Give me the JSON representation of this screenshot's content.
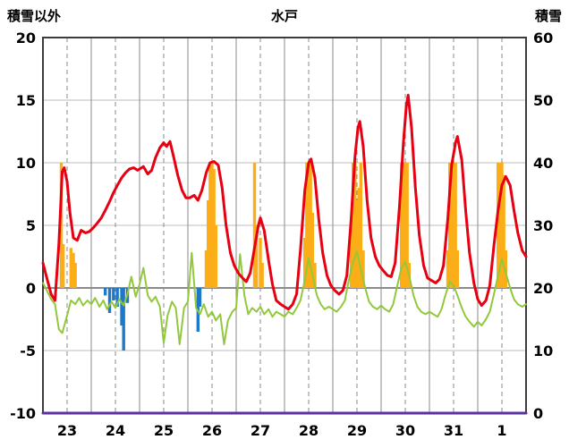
{
  "chart_data": {
    "type": "line",
    "title": "水戸",
    "left_axis": {
      "label": "積雪以外",
      "min": -10,
      "max": 20,
      "ticks": [
        20,
        15,
        10,
        5,
        0,
        -5,
        -10
      ]
    },
    "right_axis": {
      "label": "積雪",
      "min": 0,
      "max": 60,
      "ticks": [
        60,
        50,
        40,
        30,
        20,
        10,
        0
      ]
    },
    "x_axis": {
      "tick_labels": [
        "23",
        "24",
        "25",
        "26",
        "27",
        "28",
        "29",
        "30",
        "31",
        "1"
      ]
    },
    "grid": {
      "h_line_color": "#bdbdbd",
      "zero_line_color": "#8a8a8a",
      "v_line_color": "#8a8a8a",
      "frame_color": "#3c3c3c"
    },
    "series": [
      {
        "name": "orange-bars",
        "type": "bar",
        "axis": "left",
        "color": "#fbae17",
        "bar_width": 3.4,
        "points": [
          [
            0.38,
            10
          ],
          [
            0.42,
            3.5
          ],
          [
            0.58,
            3.2
          ],
          [
            0.63,
            2.8
          ],
          [
            0.67,
            2
          ],
          [
            3.38,
            3
          ],
          [
            3.42,
            7
          ],
          [
            3.46,
            10
          ],
          [
            3.5,
            10
          ],
          [
            3.54,
            9.5
          ],
          [
            3.58,
            5
          ],
          [
            4.38,
            10
          ],
          [
            4.42,
            5
          ],
          [
            4.5,
            4
          ],
          [
            4.54,
            2
          ],
          [
            5.42,
            4
          ],
          [
            5.46,
            10
          ],
          [
            5.5,
            10
          ],
          [
            5.54,
            10
          ],
          [
            5.58,
            6
          ],
          [
            5.63,
            2
          ],
          [
            6.38,
            5
          ],
          [
            6.42,
            10
          ],
          [
            6.46,
            10
          ],
          [
            6.5,
            7
          ],
          [
            6.54,
            8
          ],
          [
            6.58,
            10
          ],
          [
            6.63,
            3
          ],
          [
            7.42,
            10
          ],
          [
            7.46,
            10
          ],
          [
            7.5,
            10
          ],
          [
            7.54,
            10
          ],
          [
            7.58,
            2
          ],
          [
            8.38,
            3
          ],
          [
            8.42,
            10
          ],
          [
            8.46,
            10
          ],
          [
            8.5,
            10
          ],
          [
            8.54,
            10
          ],
          [
            8.58,
            3
          ],
          [
            9.42,
            10
          ],
          [
            9.46,
            10
          ],
          [
            9.5,
            10
          ],
          [
            9.54,
            9
          ],
          [
            9.58,
            3
          ]
        ]
      },
      {
        "name": "blue-bars",
        "type": "bar",
        "axis": "left",
        "color": "#1e7ac8",
        "bar_width": 3.4,
        "points": [
          [
            1.29,
            -0.6
          ],
          [
            1.38,
            -2
          ],
          [
            1.46,
            -1
          ],
          [
            1.54,
            -1.5
          ],
          [
            1.63,
            -3
          ],
          [
            1.67,
            -5
          ],
          [
            1.75,
            -1.2
          ],
          [
            3.21,
            -3.5
          ],
          [
            3.25,
            -1.5
          ]
        ]
      },
      {
        "name": "green-line",
        "type": "line",
        "axis": "left",
        "color": "#92c83c",
        "width": 2,
        "points": [
          [
            0,
            0.4
          ],
          [
            0.08,
            -0.2
          ],
          [
            0.17,
            -0.9
          ],
          [
            0.25,
            -1.3
          ],
          [
            0.33,
            -3.3
          ],
          [
            0.4,
            -3.6
          ],
          [
            0.5,
            -2.2
          ],
          [
            0.58,
            -1
          ],
          [
            0.67,
            -1.3
          ],
          [
            0.75,
            -0.8
          ],
          [
            0.83,
            -1.4
          ],
          [
            0.92,
            -1
          ],
          [
            1,
            -1.3
          ],
          [
            1.08,
            -0.8
          ],
          [
            1.17,
            -1.5
          ],
          [
            1.25,
            -1
          ],
          [
            1.33,
            -1.7
          ],
          [
            1.42,
            -1.1
          ],
          [
            1.5,
            -1.6
          ],
          [
            1.58,
            -0.9
          ],
          [
            1.67,
            -1.4
          ],
          [
            1.75,
            -0.5
          ],
          [
            1.83,
            0.9
          ],
          [
            1.92,
            -0.7
          ],
          [
            2,
            0.3
          ],
          [
            2.08,
            1.6
          ],
          [
            2.17,
            -0.6
          ],
          [
            2.25,
            -1.1
          ],
          [
            2.33,
            -0.7
          ],
          [
            2.42,
            -1.5
          ],
          [
            2.5,
            -4.4
          ],
          [
            2.58,
            -2.2
          ],
          [
            2.67,
            -1.1
          ],
          [
            2.75,
            -1.6
          ],
          [
            2.83,
            -4.5
          ],
          [
            2.92,
            -1.6
          ],
          [
            3,
            -1.1
          ],
          [
            3.08,
            2.8
          ],
          [
            3.17,
            -1.6
          ],
          [
            3.25,
            -2.1
          ],
          [
            3.33,
            -1.3
          ],
          [
            3.42,
            -2.3
          ],
          [
            3.5,
            -1.9
          ],
          [
            3.58,
            -2.6
          ],
          [
            3.67,
            -2.1
          ],
          [
            3.75,
            -4.5
          ],
          [
            3.83,
            -2.6
          ],
          [
            3.92,
            -1.9
          ],
          [
            4,
            -1.6
          ],
          [
            4.08,
            2.7
          ],
          [
            4.17,
            -0.6
          ],
          [
            4.25,
            -2.1
          ],
          [
            4.33,
            -1.6
          ],
          [
            4.42,
            -1.9
          ],
          [
            4.5,
            -1.5
          ],
          [
            4.58,
            -2.1
          ],
          [
            4.67,
            -1.7
          ],
          [
            4.75,
            -2.3
          ],
          [
            4.83,
            -1.9
          ],
          [
            4.92,
            -2.1
          ],
          [
            5,
            -2.3
          ],
          [
            5.08,
            -1.9
          ],
          [
            5.17,
            -2.1
          ],
          [
            5.25,
            -1.6
          ],
          [
            5.33,
            -1
          ],
          [
            5.42,
            0.6
          ],
          [
            5.5,
            2.4
          ],
          [
            5.58,
            1
          ],
          [
            5.67,
            -0.6
          ],
          [
            5.75,
            -1.3
          ],
          [
            5.83,
            -1.7
          ],
          [
            5.92,
            -1.5
          ],
          [
            6,
            -1.7
          ],
          [
            6.08,
            -1.9
          ],
          [
            6.17,
            -1.5
          ],
          [
            6.25,
            -1
          ],
          [
            6.33,
            0.6
          ],
          [
            6.42,
            2.1
          ],
          [
            6.5,
            2.9
          ],
          [
            6.58,
            1.5
          ],
          [
            6.67,
            0
          ],
          [
            6.75,
            -1.1
          ],
          [
            6.83,
            -1.5
          ],
          [
            6.92,
            -1.7
          ],
          [
            7,
            -1.4
          ],
          [
            7.08,
            -1.7
          ],
          [
            7.17,
            -1.9
          ],
          [
            7.25,
            -1.3
          ],
          [
            7.33,
            0.1
          ],
          [
            7.42,
            1.6
          ],
          [
            7.5,
            2.1
          ],
          [
            7.58,
            1
          ],
          [
            7.67,
            -0.6
          ],
          [
            7.75,
            -1.5
          ],
          [
            7.83,
            -1.9
          ],
          [
            7.92,
            -2.1
          ],
          [
            8,
            -1.9
          ],
          [
            8.08,
            -2.1
          ],
          [
            8.17,
            -2.3
          ],
          [
            8.25,
            -1.7
          ],
          [
            8.33,
            -0.6
          ],
          [
            8.42,
            0.5
          ],
          [
            8.5,
            0.2
          ],
          [
            8.58,
            -0.6
          ],
          [
            8.67,
            -1.6
          ],
          [
            8.75,
            -2.3
          ],
          [
            8.83,
            -2.7
          ],
          [
            8.92,
            -3.1
          ],
          [
            9,
            -2.7
          ],
          [
            9.08,
            -3
          ],
          [
            9.17,
            -2.5
          ],
          [
            9.25,
            -1.9
          ],
          [
            9.33,
            -0.6
          ],
          [
            9.42,
            1
          ],
          [
            9.5,
            2.3
          ],
          [
            9.58,
            1.2
          ],
          [
            9.67,
            0
          ],
          [
            9.75,
            -0.9
          ],
          [
            9.83,
            -1.3
          ],
          [
            9.92,
            -1.5
          ],
          [
            10,
            -1.3
          ]
        ]
      },
      {
        "name": "red-line",
        "type": "line",
        "axis": "left",
        "color": "#e60012",
        "width": 3,
        "points": [
          [
            0,
            2
          ],
          [
            0.08,
            0.8
          ],
          [
            0.17,
            -0.5
          ],
          [
            0.25,
            -1
          ],
          [
            0.33,
            3.5
          ],
          [
            0.4,
            9.3
          ],
          [
            0.44,
            9.6
          ],
          [
            0.5,
            8.5
          ],
          [
            0.56,
            6
          ],
          [
            0.63,
            4
          ],
          [
            0.71,
            3.8
          ],
          [
            0.79,
            4.6
          ],
          [
            0.88,
            4.4
          ],
          [
            0.96,
            4.5
          ],
          [
            1.04,
            4.8
          ],
          [
            1.13,
            5.2
          ],
          [
            1.21,
            5.6
          ],
          [
            1.29,
            6.2
          ],
          [
            1.38,
            6.9
          ],
          [
            1.46,
            7.6
          ],
          [
            1.54,
            8.2
          ],
          [
            1.63,
            8.8
          ],
          [
            1.71,
            9.2
          ],
          [
            1.79,
            9.5
          ],
          [
            1.88,
            9.6
          ],
          [
            1.96,
            9.4
          ],
          [
            2.04,
            9.6
          ],
          [
            2.08,
            9.7
          ],
          [
            2.17,
            9.1
          ],
          [
            2.25,
            9.4
          ],
          [
            2.33,
            10.4
          ],
          [
            2.42,
            11.2
          ],
          [
            2.5,
            11.6
          ],
          [
            2.56,
            11.3
          ],
          [
            2.63,
            11.7
          ],
          [
            2.71,
            10.4
          ],
          [
            2.79,
            9
          ],
          [
            2.88,
            7.8
          ],
          [
            2.96,
            7.2
          ],
          [
            3.04,
            7.2
          ],
          [
            3.13,
            7.4
          ],
          [
            3.21,
            7
          ],
          [
            3.29,
            7.8
          ],
          [
            3.38,
            9.2
          ],
          [
            3.46,
            10
          ],
          [
            3.54,
            10.1
          ],
          [
            3.63,
            9.8
          ],
          [
            3.71,
            8
          ],
          [
            3.79,
            5
          ],
          [
            3.88,
            2.8
          ],
          [
            3.96,
            1.8
          ],
          [
            4.04,
            1.2
          ],
          [
            4.13,
            0.8
          ],
          [
            4.21,
            0.5
          ],
          [
            4.29,
            1.2
          ],
          [
            4.38,
            3.2
          ],
          [
            4.46,
            5
          ],
          [
            4.5,
            5.6
          ],
          [
            4.58,
            4.6
          ],
          [
            4.67,
            2.2
          ],
          [
            4.75,
            0.3
          ],
          [
            4.83,
            -1
          ],
          [
            4.92,
            -1.3
          ],
          [
            5,
            -1.5
          ],
          [
            5.08,
            -1.7
          ],
          [
            5.17,
            -1.3
          ],
          [
            5.25,
            -0.5
          ],
          [
            5.33,
            3
          ],
          [
            5.42,
            7.8
          ],
          [
            5.5,
            10
          ],
          [
            5.55,
            10.3
          ],
          [
            5.63,
            8.8
          ],
          [
            5.71,
            5.5
          ],
          [
            5.79,
            2.8
          ],
          [
            5.88,
            1
          ],
          [
            5.96,
            0.2
          ],
          [
            6.04,
            -0.2
          ],
          [
            6.13,
            -0.5
          ],
          [
            6.21,
            -0.2
          ],
          [
            6.29,
            1
          ],
          [
            6.38,
            5.5
          ],
          [
            6.46,
            10.5
          ],
          [
            6.52,
            12.8
          ],
          [
            6.56,
            13.3
          ],
          [
            6.63,
            11.3
          ],
          [
            6.71,
            7
          ],
          [
            6.79,
            4
          ],
          [
            6.88,
            2.5
          ],
          [
            6.96,
            1.8
          ],
          [
            7.04,
            1.4
          ],
          [
            7.13,
            1
          ],
          [
            7.21,
            0.9
          ],
          [
            7.29,
            2
          ],
          [
            7.38,
            6.5
          ],
          [
            7.46,
            11.5
          ],
          [
            7.52,
            14.5
          ],
          [
            7.56,
            15.4
          ],
          [
            7.63,
            12.8
          ],
          [
            7.71,
            8
          ],
          [
            7.79,
            4.2
          ],
          [
            7.88,
            1.8
          ],
          [
            7.96,
            0.8
          ],
          [
            8.04,
            0.6
          ],
          [
            8.13,
            0.4
          ],
          [
            8.21,
            0.7
          ],
          [
            8.29,
            1.8
          ],
          [
            8.38,
            5.5
          ],
          [
            8.46,
            9.8
          ],
          [
            8.54,
            11.6
          ],
          [
            8.58,
            12.1
          ],
          [
            8.67,
            10.2
          ],
          [
            8.75,
            6.2
          ],
          [
            8.83,
            2.8
          ],
          [
            8.92,
            0.4
          ],
          [
            9,
            -0.9
          ],
          [
            9.08,
            -1.4
          ],
          [
            9.17,
            -1
          ],
          [
            9.25,
            0.2
          ],
          [
            9.33,
            3.2
          ],
          [
            9.42,
            6.2
          ],
          [
            9.5,
            8.2
          ],
          [
            9.58,
            8.9
          ],
          [
            9.67,
            8.2
          ],
          [
            9.75,
            6.2
          ],
          [
            9.83,
            4.4
          ],
          [
            9.92,
            3
          ],
          [
            10,
            2.5
          ]
        ]
      },
      {
        "name": "purple-line",
        "type": "line",
        "axis": "right",
        "color": "#5b32a0",
        "width": 3,
        "points": [
          [
            0,
            0
          ],
          [
            10,
            0
          ]
        ]
      }
    ]
  }
}
